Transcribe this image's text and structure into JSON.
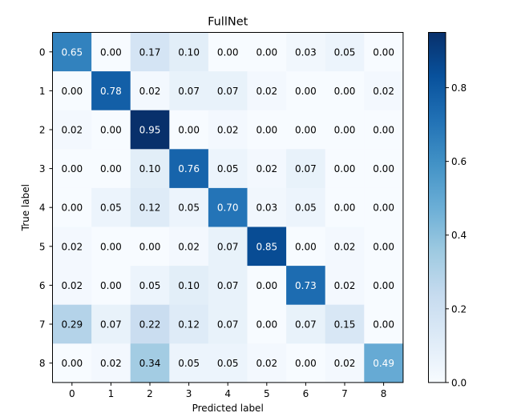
{
  "chart_data": {
    "type": "heatmap",
    "title": "FullNet",
    "xlabel": "Predicted label",
    "ylabel": "True label",
    "x_categories": [
      "0",
      "1",
      "2",
      "3",
      "4",
      "5",
      "6",
      "7",
      "8"
    ],
    "y_categories": [
      "0",
      "1",
      "2",
      "3",
      "4",
      "5",
      "6",
      "7",
      "8"
    ],
    "values": [
      [
        0.65,
        0.0,
        0.17,
        0.1,
        0.0,
        0.0,
        0.03,
        0.05,
        0.0
      ],
      [
        0.0,
        0.78,
        0.02,
        0.07,
        0.07,
        0.02,
        0.0,
        0.0,
        0.02
      ],
      [
        0.02,
        0.0,
        0.95,
        0.0,
        0.02,
        0.0,
        0.0,
        0.0,
        0.0
      ],
      [
        0.0,
        0.0,
        0.1,
        0.76,
        0.05,
        0.02,
        0.07,
        0.0,
        0.0
      ],
      [
        0.0,
        0.05,
        0.12,
        0.05,
        0.7,
        0.03,
        0.05,
        0.0,
        0.0
      ],
      [
        0.02,
        0.0,
        0.0,
        0.02,
        0.07,
        0.85,
        0.0,
        0.02,
        0.0
      ],
      [
        0.02,
        0.0,
        0.05,
        0.1,
        0.07,
        0.0,
        0.73,
        0.02,
        0.0
      ],
      [
        0.29,
        0.07,
        0.22,
        0.12,
        0.07,
        0.0,
        0.07,
        0.15,
        0.0
      ],
      [
        0.0,
        0.02,
        0.34,
        0.05,
        0.05,
        0.02,
        0.0,
        0.02,
        0.49
      ]
    ],
    "value_format": "2 decimals",
    "colormap": "Blues",
    "colorbar": {
      "range": [
        0.0,
        0.95
      ],
      "ticks": [
        0.0,
        0.2,
        0.4,
        0.6,
        0.8
      ],
      "tick_labels": [
        "0.0",
        "0.2",
        "0.4",
        "0.6",
        "0.8"
      ]
    },
    "grid": false
  }
}
